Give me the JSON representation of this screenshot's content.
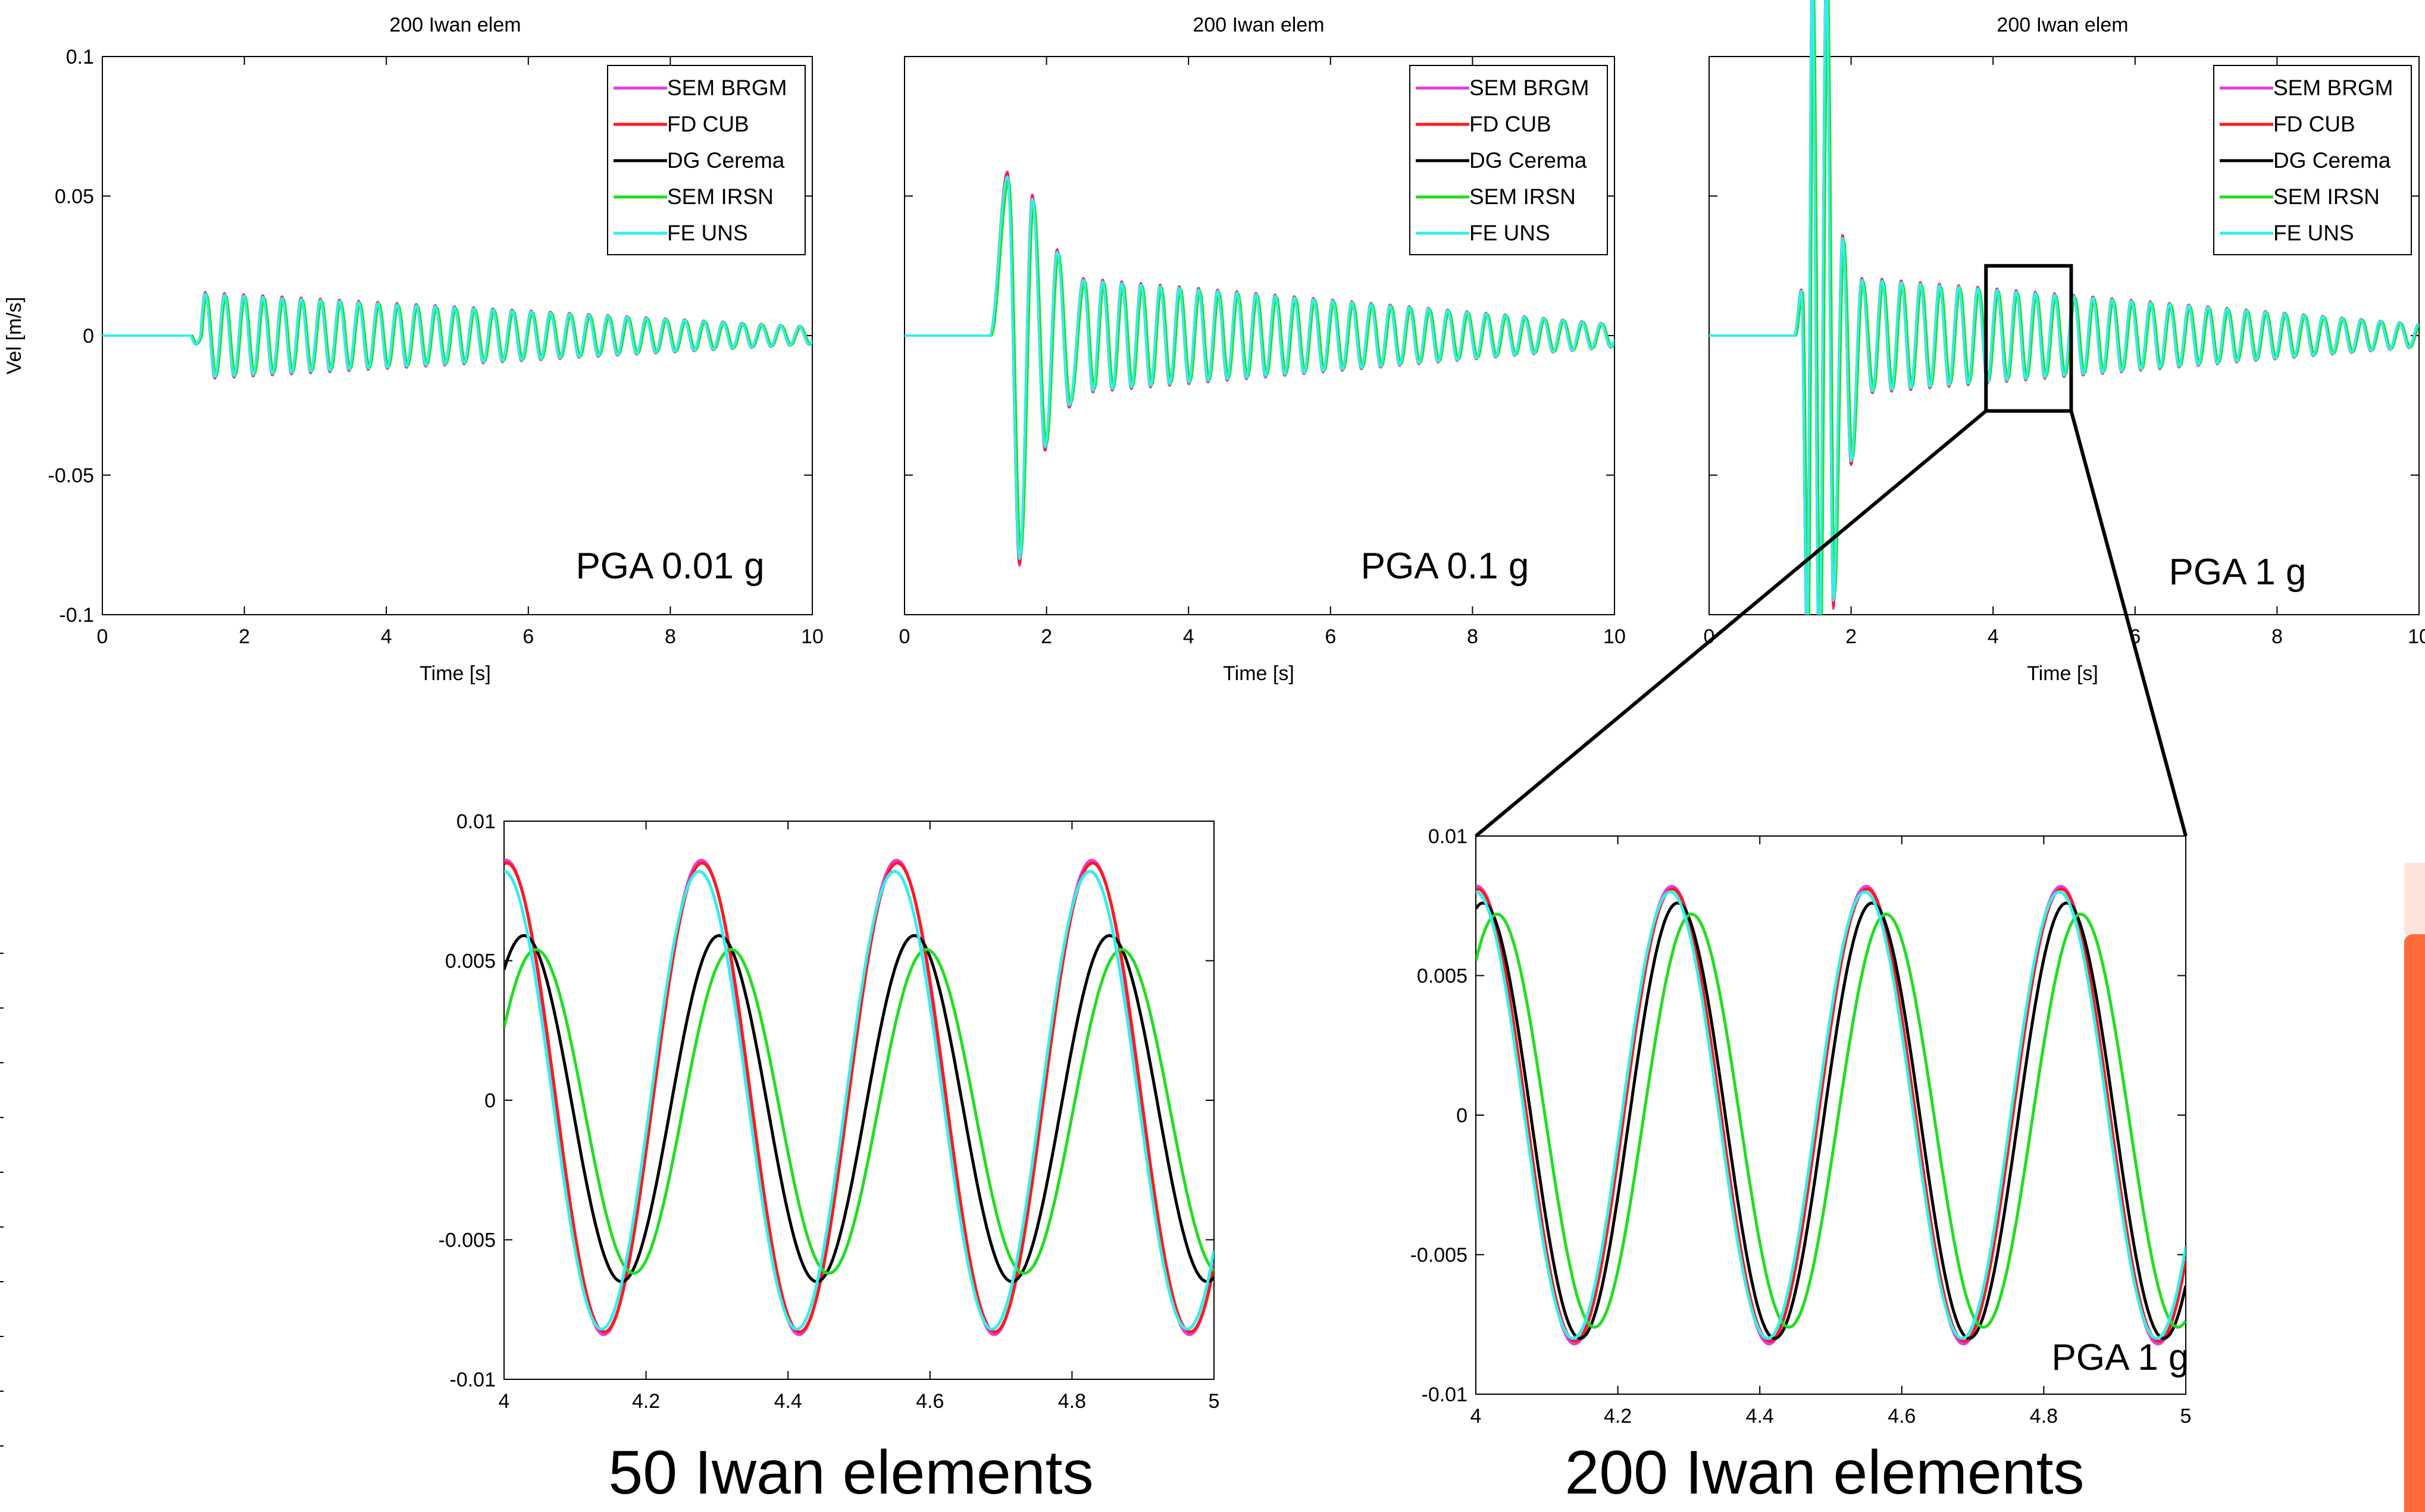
{
  "colors": {
    "SEM BRGM": "#e040e0",
    "FD CUB": "#ff1a1a",
    "DG Cerema": "#000000",
    "SEM IRSN": "#22dd22",
    "FE UNS": "#33eeee",
    "accent_bar": "#ff6a38",
    "accent_bar_light": "#fde4da"
  },
  "chart_data": [
    {
      "type": "line",
      "title": "200 Iwan elem",
      "xlabel": "Time [s]",
      "ylabel": "Vel [m/s]",
      "xlim": [
        0,
        10
      ],
      "ylim": [
        -0.1,
        0.1
      ],
      "xticks": [
        "0",
        "2",
        "4",
        "6",
        "8",
        "10"
      ],
      "yticks": [
        "-0.1",
        "-0.05",
        "0",
        "0.05",
        "0.1"
      ],
      "annotation": "PGA 0.01 g",
      "legend": "top-right",
      "legend_entries": [
        "SEM BRGM",
        "FD CUB",
        "DG Cerema",
        "SEM IRSN",
        "FE UNS"
      ],
      "waveform": {
        "onset_s": 1.25,
        "first_peak_s": 1.45,
        "peak_amplitude": 0.015,
        "period_s": 0.27,
        "decay_to": 0.003
      },
      "series": [
        {
          "name": "SEM BRGM",
          "phase_lag_s": 0.0,
          "amp_scale": 1.04
        },
        {
          "name": "FD CUB",
          "phase_lag_s": 0.0,
          "amp_scale": 1.02
        },
        {
          "name": "DG Cerema",
          "phase_lag_s": 0.01,
          "amp_scale": 0.98
        },
        {
          "name": "SEM IRSN",
          "phase_lag_s": 0.02,
          "amp_scale": 0.97
        },
        {
          "name": "FE UNS",
          "phase_lag_s": 0.0,
          "amp_scale": 1.0
        }
      ]
    },
    {
      "type": "line",
      "title": "200 Iwan elem",
      "xlabel": "Time [s]",
      "ylabel": "",
      "xlim": [
        0,
        10
      ],
      "ylim": [
        -0.1,
        0.1
      ],
      "xticks": [
        "0",
        "2",
        "4",
        "6",
        "8",
        "10"
      ],
      "yticks": [],
      "annotation": "PGA 0.1 g",
      "legend": "top-right",
      "legend_entries": [
        "SEM BRGM",
        "FD CUB",
        "DG Cerema",
        "SEM IRSN",
        "FE UNS"
      ],
      "key_points": [
        [
          1.2,
          0.0
        ],
        [
          1.45,
          0.057
        ],
        [
          1.62,
          -0.08
        ],
        [
          1.8,
          0.049
        ],
        [
          1.98,
          -0.04
        ],
        [
          2.15,
          0.03
        ],
        [
          2.32,
          -0.025
        ],
        [
          2.52,
          0.02
        ]
      ],
      "waveform": {
        "period_s": 0.27,
        "decay_to": 0.004
      },
      "series": [
        {
          "name": "SEM BRGM",
          "phase_lag_s": 0.0,
          "amp_scale": 1.03
        },
        {
          "name": "FD CUB",
          "phase_lag_s": 0.0,
          "amp_scale": 1.02
        },
        {
          "name": "DG Cerema",
          "phase_lag_s": 0.01,
          "amp_scale": 0.98
        },
        {
          "name": "SEM IRSN",
          "phase_lag_s": 0.02,
          "amp_scale": 0.97
        },
        {
          "name": "FE UNS",
          "phase_lag_s": 0.0,
          "amp_scale": 1.0
        }
      ]
    },
    {
      "type": "line",
      "title": "200 Iwan elem",
      "xlabel": "Time [s]",
      "ylabel": "",
      "xlim": [
        0,
        10
      ],
      "ylim": [
        -0.1,
        0.1
      ],
      "xticks": [
        "0",
        "2",
        "4",
        "6",
        "8",
        "10"
      ],
      "yticks": [],
      "annotation": "PGA 1 g",
      "legend": "top-right",
      "legend_entries": [
        "SEM BRGM",
        "FD CUB",
        "DG Cerema",
        "SEM IRSN",
        "FE UNS"
      ],
      "key_points": [
        [
          1.2,
          0.0
        ],
        [
          1.3,
          0.016
        ],
        [
          1.38,
          -0.11
        ],
        [
          1.45,
          0.13
        ],
        [
          1.55,
          -0.12
        ],
        [
          1.65,
          0.13
        ],
        [
          1.75,
          -0.095
        ],
        [
          1.88,
          0.035
        ],
        [
          2.0,
          -0.045
        ],
        [
          2.15,
          0.02
        ],
        [
          2.3,
          -0.02
        ]
      ],
      "waveform": {
        "period_s": 0.27,
        "decay_to": 0.004
      },
      "zoom_box": {
        "x": [
          3.9,
          5.1
        ],
        "y": [
          -0.027,
          0.025
        ]
      },
      "series": [
        {
          "name": "SEM BRGM",
          "phase_lag_s": 0.0,
          "amp_scale": 1.03
        },
        {
          "name": "FD CUB",
          "phase_lag_s": 0.0,
          "amp_scale": 1.02
        },
        {
          "name": "DG Cerema",
          "phase_lag_s": 0.01,
          "amp_scale": 0.98
        },
        {
          "name": "SEM IRSN",
          "phase_lag_s": 0.02,
          "amp_scale": 0.97
        },
        {
          "name": "FE UNS",
          "phase_lag_s": 0.0,
          "amp_scale": 1.0
        }
      ]
    },
    {
      "type": "line",
      "title": "",
      "caption": "50 Iwan elements",
      "xlim": [
        4,
        5
      ],
      "ylim": [
        -0.01,
        0.01
      ],
      "xticks": [
        "4",
        "4.2",
        "4.4",
        "4.6",
        "4.8",
        "5"
      ],
      "yticks": [
        "-0.01",
        "-0.005",
        "0",
        "0.005",
        "0.01"
      ],
      "period_s": 0.275,
      "series": [
        {
          "name": "SEM BRGM",
          "amplitude": 0.0085,
          "phase_peak_s": 4.003,
          "offset": 0.0001
        },
        {
          "name": "FD CUB",
          "amplitude": 0.0084,
          "phase_peak_s": 4.004,
          "offset": 0.0001
        },
        {
          "name": "DG Cerema",
          "amplitude": 0.0062,
          "phase_peak_s": 4.028,
          "offset": -0.0003
        },
        {
          "name": "SEM IRSN",
          "amplitude": 0.0058,
          "phase_peak_s": 4.045,
          "offset": -0.0004
        },
        {
          "name": "FE UNS",
          "amplitude": 0.0082,
          "phase_peak_s": 4.0,
          "offset": 0.0
        }
      ]
    },
    {
      "type": "line",
      "title": "",
      "caption": "200 Iwan elements",
      "annotation": "PGA 1 g",
      "xlim": [
        4,
        5
      ],
      "ylim": [
        -0.01,
        0.01
      ],
      "xticks": [
        "4",
        "4.2",
        "4.4",
        "4.6",
        "4.8",
        "5"
      ],
      "yticks": [
        "-0.01",
        "-0.005",
        "0",
        "0.005",
        "0.01"
      ],
      "period_s": 0.274,
      "series": [
        {
          "name": "SEM BRGM",
          "amplitude": 0.0082,
          "phase_peak_s": 4.002,
          "offset": 0.0
        },
        {
          "name": "FD CUB",
          "amplitude": 0.0081,
          "phase_peak_s": 4.003,
          "offset": 0.0
        },
        {
          "name": "DG Cerema",
          "amplitude": 0.0078,
          "phase_peak_s": 4.01,
          "offset": -0.0002
        },
        {
          "name": "SEM IRSN",
          "amplitude": 0.0074,
          "phase_peak_s": 4.03,
          "offset": -0.0002
        },
        {
          "name": "FE UNS",
          "amplitude": 0.008,
          "phase_peak_s": 4.0,
          "offset": 0.0
        }
      ]
    }
  ]
}
